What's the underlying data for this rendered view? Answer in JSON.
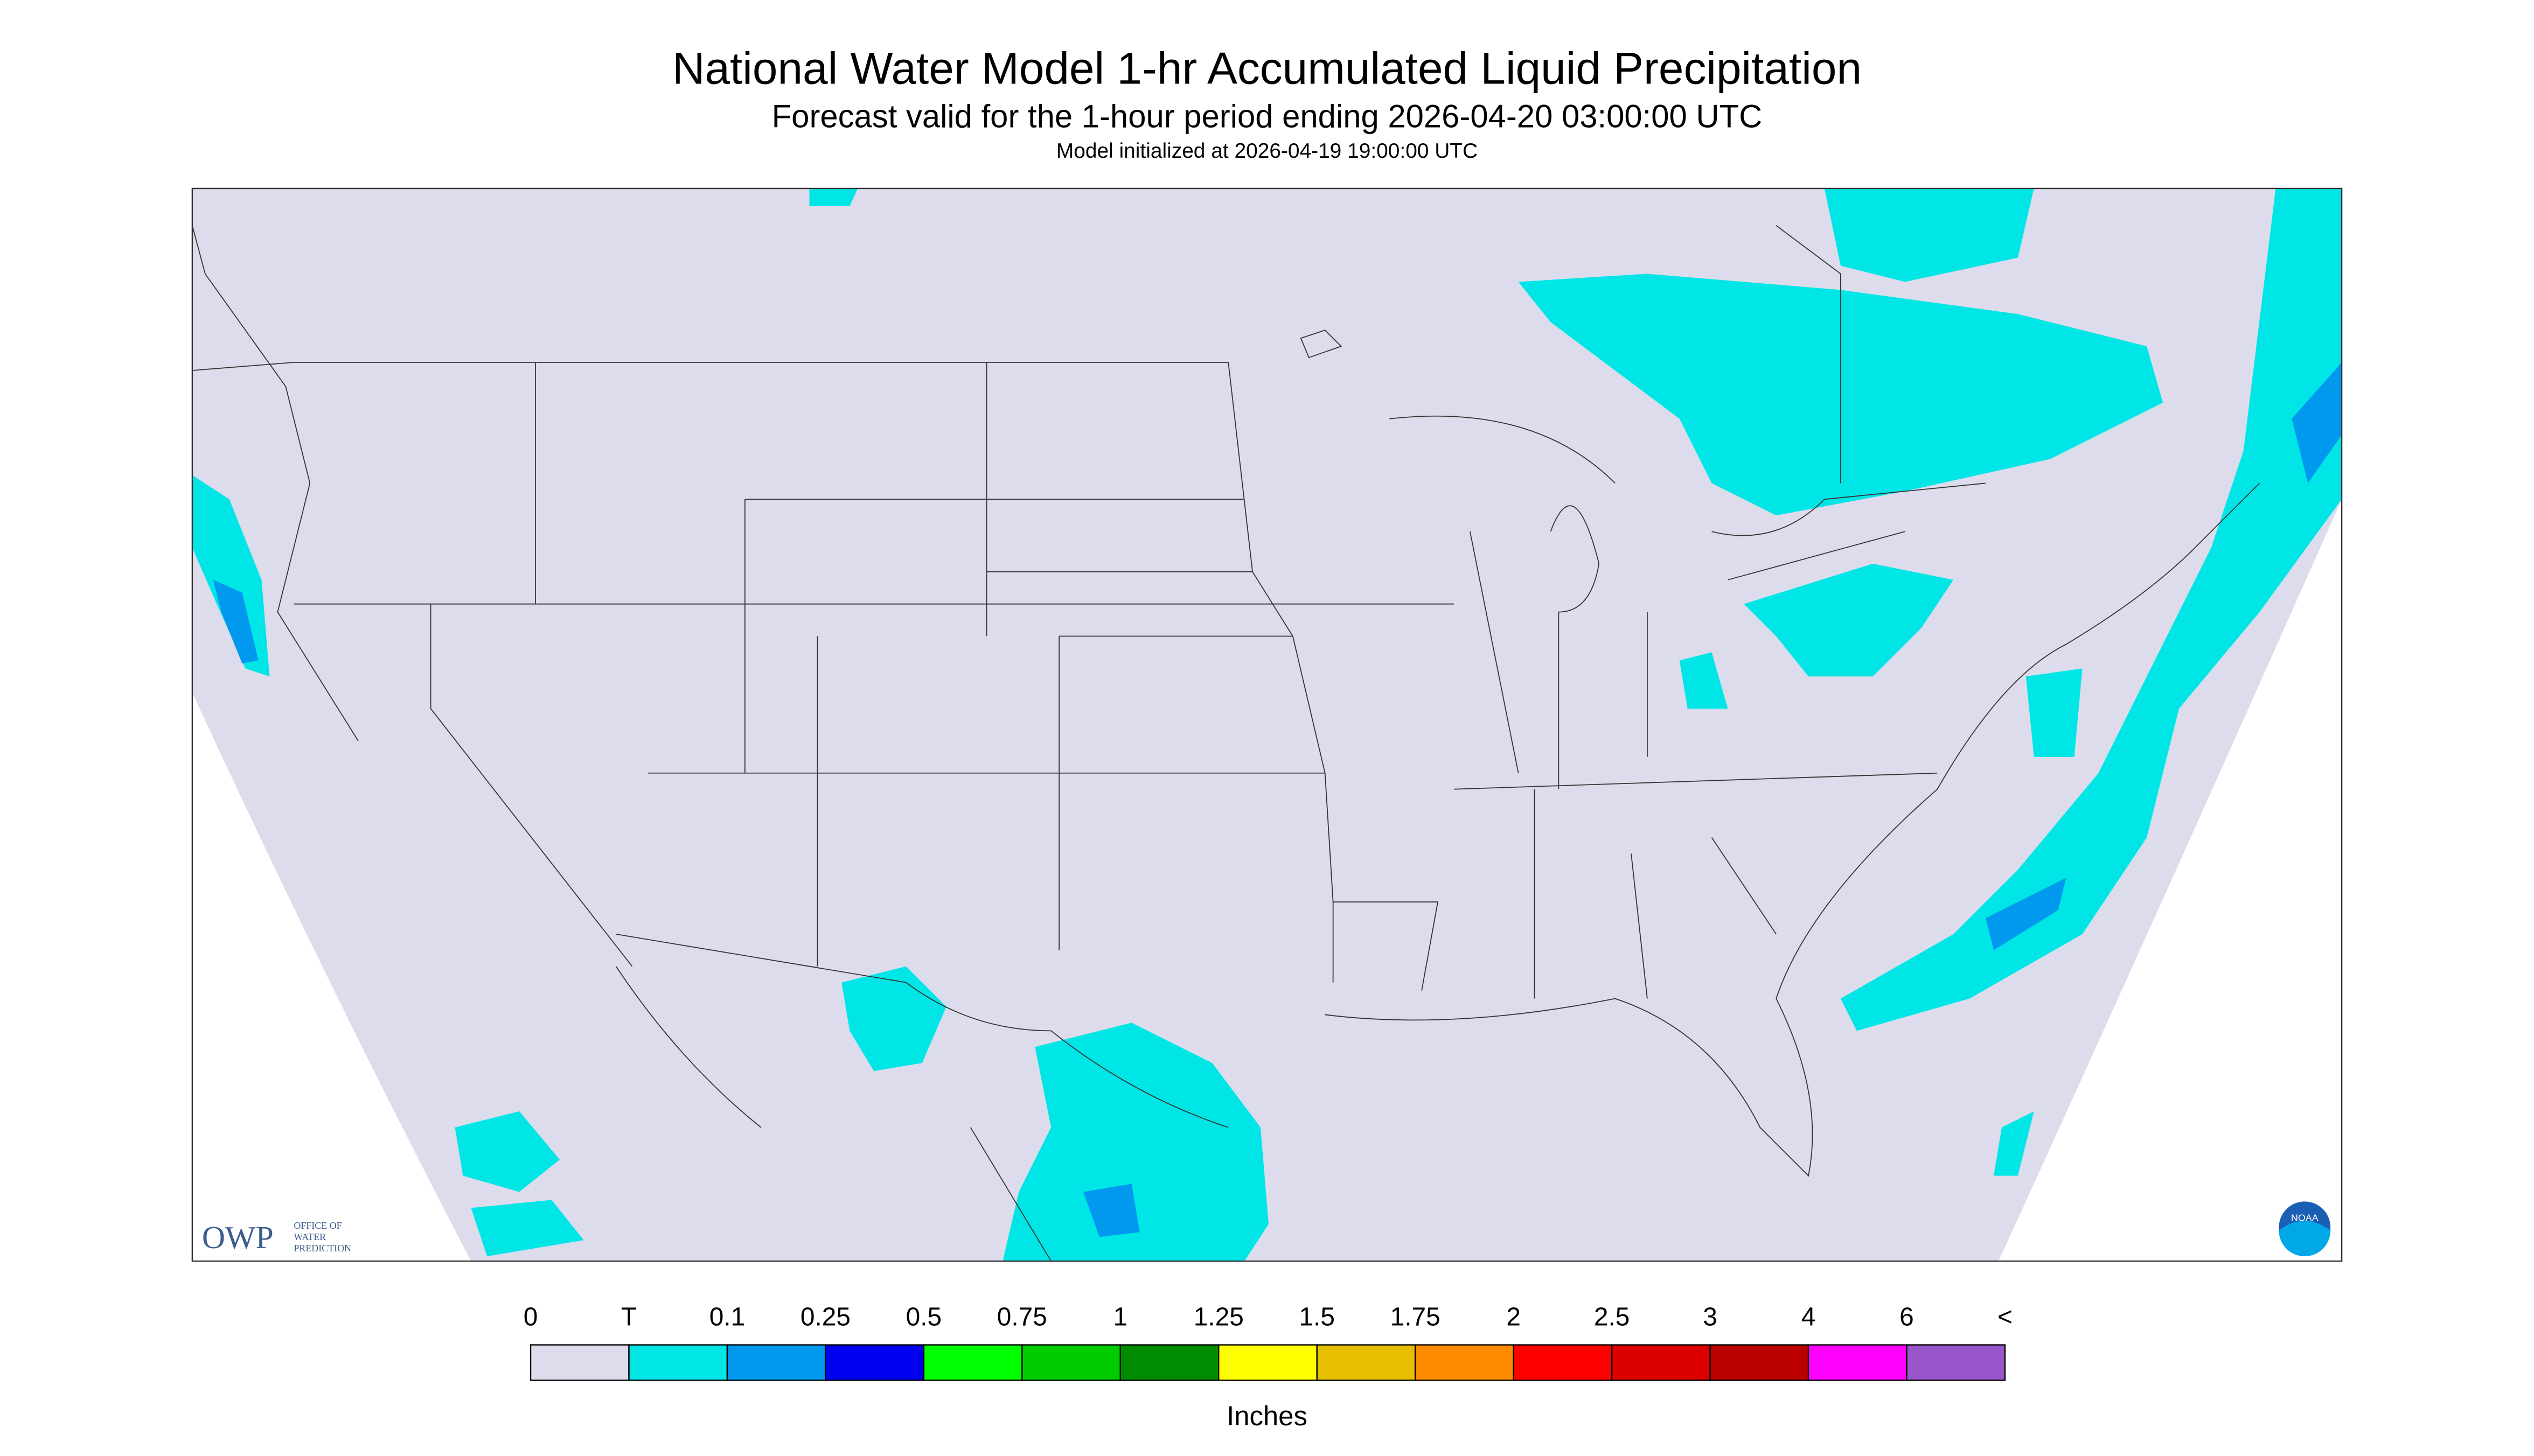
{
  "header": {
    "title": "National Water Model 1-hr Accumulated Liquid Precipitation",
    "subtitle": "Forecast valid for the 1-hour period ending 2026-04-20 03:00:00 UTC",
    "init": "Model initialized at 2026-04-19 19:00:00 UTC"
  },
  "logos": {
    "owp": "OWP",
    "owp_text": [
      "OFFICE OF",
      "WATER",
      "PREDICTION"
    ],
    "noaa": "NOAA"
  },
  "colorbar": {
    "labels": [
      "0",
      "T",
      "0.1",
      "0.25",
      "0.5",
      "0.75",
      "1",
      "1.25",
      "1.5",
      "1.75",
      "2",
      "2.5",
      "3",
      "4",
      "6",
      "<"
    ],
    "colors": [
      "#dcdcec",
      "#00e6e6",
      "#0099ee",
      "#0000f0",
      "#00ff00",
      "#00cc00",
      "#008c00",
      "#ffff00",
      "#e6c000",
      "#ff8c00",
      "#ff0000",
      "#dd0000",
      "#bb0000",
      "#ff00ff",
      "#9955cc"
    ],
    "unit": "Inches"
  }
}
